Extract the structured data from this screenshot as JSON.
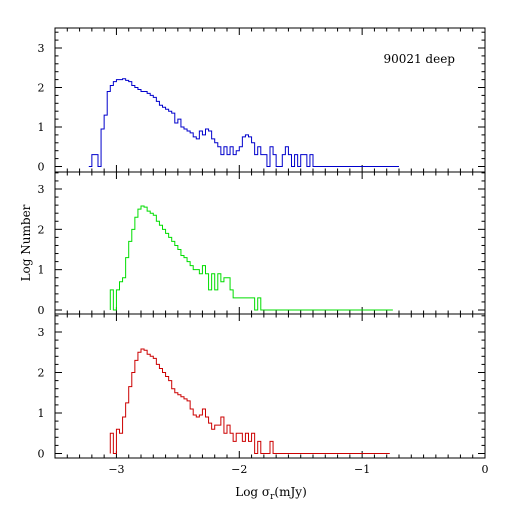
{
  "chart_data": {
    "type": "step-histogram",
    "layout": "three vertically stacked panels sharing one x axis",
    "xlabel": "Log σ",
    "xlabel_sub": "r",
    "xlabel_unit": "(mJy)",
    "ylabel": "Log Number",
    "xlim": [
      -3.5,
      0
    ],
    "ylim": [
      -0.1,
      3.5
    ],
    "bin_width": 0.025,
    "x_ticks": [
      -3,
      -2,
      -1,
      0
    ],
    "x_tick_labels": [
      "−3",
      "−2",
      "−1",
      "0"
    ],
    "y_ticks": [
      0,
      1,
      2,
      3
    ],
    "y_tick_labels": [
      "0",
      "1",
      "2",
      "3"
    ],
    "annotation": "90021 deep",
    "panels": [
      {
        "color": "#0000cc",
        "x_start": -3.225,
        "values": [
          0.0,
          0.3,
          0.3,
          0.0,
          0.95,
          1.3,
          1.9,
          2.05,
          2.15,
          2.2,
          2.2,
          2.22,
          2.18,
          2.15,
          2.05,
          2.0,
          1.95,
          1.9,
          1.9,
          1.85,
          1.8,
          1.75,
          1.65,
          1.55,
          1.5,
          1.45,
          1.4,
          1.35,
          1.1,
          1.2,
          1.0,
          0.95,
          0.9,
          0.85,
          0.75,
          0.7,
          0.9,
          0.8,
          0.95,
          0.9,
          0.7,
          0.6,
          0.5,
          0.3,
          0.5,
          0.3,
          0.5,
          0.3,
          0.4,
          0.5,
          0.75,
          0.8,
          0.75,
          0.6,
          0.3,
          0.5,
          0.3,
          0.3,
          0.0,
          0.5,
          0.3,
          0.0,
          0.0,
          0.3,
          0.5,
          0.3,
          0.0,
          0.3,
          0.0,
          0.3,
          0.3,
          0.0,
          0.3,
          0.0,
          0.0,
          0.0,
          0.0,
          0.0,
          0.0,
          0.0,
          0.0,
          0.0,
          0.0,
          0.0,
          0.0,
          0.0,
          0.0,
          0.0,
          0.0,
          0.0,
          0.0,
          0.0,
          0.0,
          0.0,
          0.0,
          0.0,
          0.0,
          0.0,
          0.0,
          0.0,
          0.0
        ]
      },
      {
        "color": "#00dd00",
        "x_start": -3.05,
        "values": [
          0.5,
          0.0,
          0.5,
          0.7,
          0.8,
          1.3,
          1.7,
          2.0,
          2.3,
          2.5,
          2.58,
          2.55,
          2.45,
          2.4,
          2.35,
          2.2,
          2.1,
          2.0,
          1.9,
          1.8,
          1.7,
          1.6,
          1.5,
          1.35,
          1.3,
          1.2,
          1.1,
          1.0,
          1.0,
          0.9,
          1.1,
          0.9,
          0.5,
          0.9,
          0.5,
          0.9,
          0.7,
          0.8,
          0.8,
          0.5,
          0.3,
          0.3,
          0.3,
          0.3,
          0.3,
          0.3,
          0.3,
          0.0,
          0.3,
          0.0,
          0.0,
          0.0,
          0.0,
          0.0,
          0.0,
          0.0,
          0.0,
          0.0,
          0.0,
          0.0,
          0.0,
          0.0,
          0.0,
          0.0,
          0.0,
          0.0,
          0.0,
          0.0,
          0.0,
          0.0,
          0.0,
          0.0,
          0.0,
          0.0,
          0.0,
          0.0,
          0.0,
          0.0,
          0.0,
          0.0,
          0.0,
          0.0,
          0.0,
          0.0,
          0.0,
          0.0,
          0.0,
          0.0,
          0.0,
          0.0,
          0.0,
          0.0
        ]
      },
      {
        "color": "#cc0000",
        "x_start": -3.05,
        "values": [
          0.5,
          0.0,
          0.6,
          0.5,
          0.9,
          1.25,
          1.65,
          2.0,
          2.3,
          2.5,
          2.58,
          2.55,
          2.45,
          2.4,
          2.35,
          2.2,
          2.1,
          2.0,
          1.9,
          1.8,
          1.6,
          1.5,
          1.45,
          1.4,
          1.35,
          1.3,
          1.1,
          0.95,
          0.9,
          0.95,
          1.1,
          0.9,
          0.75,
          0.6,
          0.7,
          0.7,
          0.9,
          0.5,
          0.7,
          0.5,
          0.3,
          0.5,
          0.5,
          0.3,
          0.5,
          0.3,
          0.5,
          0.0,
          0.3,
          0.0,
          0.0,
          0.0,
          0.3,
          0.0,
          0.0,
          0.0,
          0.0,
          0.0,
          0.0,
          0.0,
          0.0,
          0.0,
          0.0,
          0.0,
          0.0,
          0.0,
          0.0,
          0.0,
          0.0,
          0.0,
          0.0,
          0.0,
          0.0,
          0.0,
          0.0,
          0.0,
          0.0,
          0.0,
          0.0,
          0.0,
          0.0,
          0.0,
          0.0,
          0.0,
          0.0,
          0.0,
          0.0,
          0.0,
          0.0,
          0.0,
          0.0
        ]
      }
    ]
  }
}
